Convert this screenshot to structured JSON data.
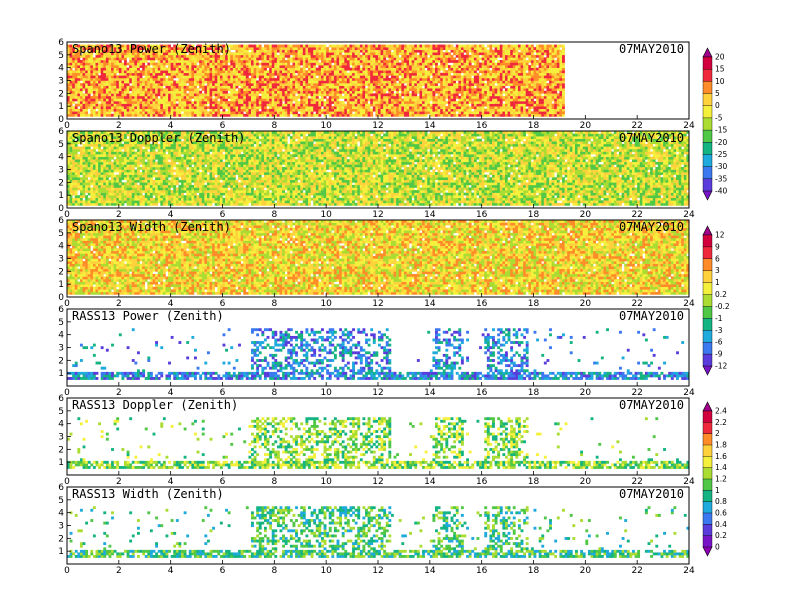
{
  "chart_data": [
    {
      "type": "heatmap",
      "title": "Spano13 Power (Zenith)",
      "date": "07MAY2010",
      "xlim": [
        0,
        24
      ],
      "x_ticks": [
        "0",
        "2",
        "4",
        "6",
        "8",
        "10",
        "12",
        "14",
        "16",
        "18",
        "20",
        "22",
        "24"
      ],
      "ylim": [
        0,
        6
      ],
      "y_ticks": [
        "0",
        "1",
        "2",
        "3",
        "4",
        "5",
        "6"
      ],
      "colorbar_group": 0,
      "coverage": "full",
      "x_range": [
        0,
        19.2
      ],
      "y_range": [
        0.2,
        5.8
      ],
      "dominant_value": 0
    },
    {
      "type": "heatmap",
      "title": "Spano13 Doppler (Zenith)",
      "date": "07MAY2010",
      "xlim": [
        0,
        24
      ],
      "x_ticks": [
        "0",
        "2",
        "4",
        "6",
        "8",
        "10",
        "12",
        "14",
        "16",
        "18",
        "20",
        "22",
        "24"
      ],
      "ylim": [
        0,
        6
      ],
      "y_ticks": [
        "0",
        "1",
        "2",
        "3",
        "4",
        "5",
        "6"
      ],
      "colorbar_group": 0,
      "coverage": "full",
      "x_range": [
        0,
        24
      ],
      "y_range": [
        0.2,
        6
      ],
      "dominant_value": -15
    },
    {
      "type": "heatmap",
      "title": "Spano13 Width (Zenith)",
      "date": "07MAY2010",
      "xlim": [
        0,
        24
      ],
      "x_ticks": [
        "0",
        "2",
        "4",
        "6",
        "8",
        "10",
        "12",
        "14",
        "16",
        "18",
        "20",
        "22",
        "24"
      ],
      "ylim": [
        0,
        6
      ],
      "y_ticks": [
        "0",
        "1",
        "2",
        "3",
        "4",
        "5",
        "6"
      ],
      "colorbar_group": 1,
      "coverage": "full",
      "x_range": [
        0,
        24
      ],
      "y_range": [
        0.2,
        6
      ],
      "dominant_value": 0.2
    },
    {
      "type": "heatmap",
      "title": "RASS13 Power (Zenith)",
      "date": "07MAY2010",
      "xlim": [
        0,
        24
      ],
      "x_ticks": [
        "0",
        "2",
        "4",
        "6",
        "8",
        "10",
        "12",
        "14",
        "16",
        "18",
        "20",
        "22",
        "24"
      ],
      "ylim": [
        0,
        6
      ],
      "y_ticks": [
        "1",
        "2",
        "3",
        "4",
        "5",
        "6"
      ],
      "colorbar_group": 1,
      "coverage": "sparse",
      "x_range": [
        0,
        24
      ],
      "y_range": [
        0.5,
        4.6
      ],
      "dominant_value": -9
    },
    {
      "type": "heatmap",
      "title": "RASS13 Doppler (Zenith)",
      "date": "07MAY2010",
      "xlim": [
        0,
        24
      ],
      "x_ticks": [
        "0",
        "2",
        "4",
        "6",
        "8",
        "10",
        "12",
        "14",
        "16",
        "18",
        "20",
        "22",
        "24"
      ],
      "ylim": [
        0,
        6
      ],
      "y_ticks": [
        "1",
        "2",
        "3",
        "4",
        "5",
        "6"
      ],
      "colorbar_group": 2,
      "coverage": "sparse",
      "x_range": [
        0,
        24
      ],
      "y_range": [
        0.5,
        4.6
      ],
      "dominant_value": 1
    },
    {
      "type": "heatmap",
      "title": "RASS13 Width (Zenith)",
      "date": "07MAY2010",
      "xlim": [
        0,
        24
      ],
      "x_ticks": [
        "0",
        "2",
        "4",
        "6",
        "8",
        "10",
        "12",
        "14",
        "16",
        "18",
        "20",
        "22",
        "24"
      ],
      "ylim": [
        0,
        6
      ],
      "y_ticks": [
        "1",
        "2",
        "3",
        "4",
        "5",
        "6"
      ],
      "colorbar_group": 2,
      "coverage": "sparse",
      "x_range": [
        0,
        24
      ],
      "y_range": [
        0.5,
        4.6
      ],
      "dominant_value": 0.8
    }
  ],
  "colorbars": [
    {
      "labels": [
        "20",
        "15",
        "10",
        "5",
        "0",
        "-5",
        "-15",
        "-20",
        "-25",
        "-30",
        "-35",
        "-40"
      ],
      "colors": [
        "#a0008a",
        "#d2003c",
        "#f0283c",
        "#ff8c28",
        "#ffd23c",
        "#f5f03c",
        "#aadc32",
        "#50c846",
        "#14b482",
        "#1eaadc",
        "#3c78f0",
        "#5a3cdc",
        "#7814c8"
      ]
    },
    {
      "labels": [
        "12",
        "9",
        "6",
        "3",
        "1",
        "0.2",
        "-0.2",
        "-1",
        "-3",
        "-6",
        "-9",
        "-12"
      ],
      "colors": [
        "#a0008a",
        "#d2003c",
        "#f0283c",
        "#ff8c28",
        "#ffd23c",
        "#f5f03c",
        "#aadc32",
        "#50c846",
        "#14b482",
        "#1eaadc",
        "#3c78f0",
        "#5a3cdc",
        "#7814c8"
      ]
    },
    {
      "labels": [
        "2.4",
        "2.2",
        "2",
        "1.8",
        "1.6",
        "1.4",
        "1.2",
        "1",
        "0.8",
        "0.6",
        "0.4",
        "0.2",
        "0"
      ],
      "colors": [
        "#a0008a",
        "#d2003c",
        "#f0283c",
        "#ff8c28",
        "#ffd23c",
        "#f5f03c",
        "#aadc32",
        "#50c846",
        "#14b482",
        "#1eaadc",
        "#3c78f0",
        "#5a3cdc",
        "#7814c8",
        "#8c00b4"
      ]
    }
  ]
}
